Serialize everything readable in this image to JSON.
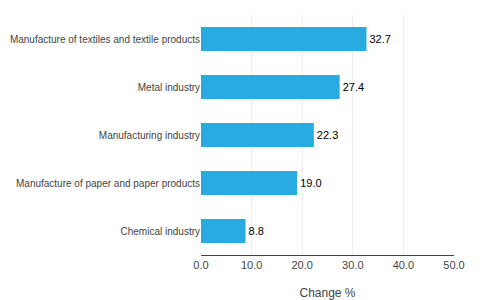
{
  "chart_data": {
    "type": "bar",
    "orientation": "horizontal",
    "categories": [
      "Chemical industry",
      "Manufacture of paper and paper products",
      "Manufacturing industry",
      "Metal industry",
      "Manufacture of textiles and textile products"
    ],
    "values": [
      8.8,
      19.0,
      22.3,
      27.4,
      32.7
    ],
    "value_labels": [
      "8.8",
      "19.0",
      "22.3",
      "27.4",
      "32.7"
    ],
    "data_labels": true,
    "color": "#29abe2",
    "xlabel": "Change %",
    "xlim": [
      0,
      50
    ],
    "xticks": [
      {
        "value": 0,
        "label": "0.0"
      },
      {
        "value": 10,
        "label": "10.0"
      },
      {
        "value": 20,
        "label": "20.0"
      },
      {
        "value": 30,
        "label": "30.0"
      },
      {
        "value": 40,
        "label": "40.0"
      },
      {
        "value": 50,
        "label": "50.0"
      }
    ],
    "grid": true
  }
}
